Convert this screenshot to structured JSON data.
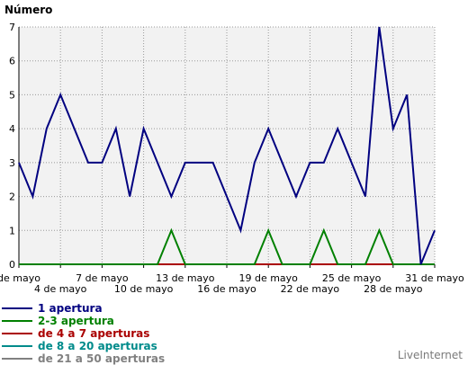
{
  "chart_data": {
    "type": "line",
    "ylabel": "Número",
    "ylim": [
      0,
      7
    ],
    "yticks": [
      0,
      1,
      2,
      3,
      4,
      5,
      6,
      7
    ],
    "x_tick_labels": [
      "de mayo",
      "4 de mayo",
      "7 de mayo",
      "10 de mayo",
      "13 de mayo",
      "16 de mayo",
      "19 de mayo",
      "22 de mayo",
      "25 de mayo",
      "28 de mayo",
      "31 de mayo"
    ],
    "x_count": 31,
    "grid": true,
    "legend_position": "bottom-left",
    "series": [
      {
        "name": "1 apertura",
        "color": "#000080",
        "values": [
          3,
          2,
          4,
          5,
          4,
          3,
          3,
          4,
          2,
          4,
          3,
          2,
          3,
          3,
          3,
          2,
          1,
          3,
          4,
          3,
          2,
          3,
          3,
          4,
          3,
          2,
          7,
          4,
          5,
          0,
          1
        ]
      },
      {
        "name": "2-3 apertura",
        "color": "#008000",
        "values": [
          0,
          0,
          0,
          0,
          0,
          0,
          0,
          0,
          0,
          0,
          0,
          1,
          0,
          0,
          0,
          0,
          0,
          0,
          1,
          0,
          0,
          0,
          1,
          0,
          0,
          0,
          1,
          0,
          0,
          0,
          0
        ]
      },
      {
        "name": "de 4 a 7 aperturas",
        "color": "#aa0000",
        "values": [
          0,
          0,
          0,
          0,
          0,
          0,
          0,
          0,
          0,
          0,
          0,
          0,
          0,
          0,
          0,
          0,
          0,
          0,
          0,
          0,
          0,
          0,
          0,
          0,
          0,
          0,
          0,
          0,
          0,
          0,
          0
        ]
      },
      {
        "name": "de 8 a 20 aperturas",
        "color": "#008b8b",
        "values": [
          0,
          0,
          0,
          0,
          0,
          0,
          0,
          0,
          0,
          0,
          0,
          0,
          0,
          0,
          0,
          0,
          0,
          0,
          0,
          0,
          0,
          0,
          0,
          0,
          0,
          0,
          0,
          0,
          0,
          0,
          0
        ]
      },
      {
        "name": "de 21 a 50 aperturas",
        "color": "#808080",
        "values": [
          0,
          0,
          0,
          0,
          0,
          0,
          0,
          0,
          0,
          0,
          0,
          0,
          0,
          0,
          0,
          0,
          0,
          0,
          0,
          0,
          0,
          0,
          0,
          0,
          0,
          0,
          0,
          0,
          0,
          0,
          0
        ]
      }
    ]
  },
  "watermark": "LiveInternet"
}
